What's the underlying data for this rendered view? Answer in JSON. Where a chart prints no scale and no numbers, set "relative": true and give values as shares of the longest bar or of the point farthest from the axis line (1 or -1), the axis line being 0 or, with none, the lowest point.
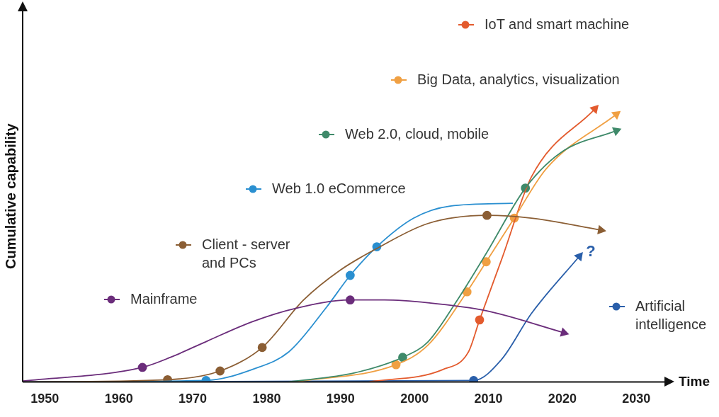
{
  "chart_data": {
    "type": "line",
    "relative": true,
    "xlabel": "Time",
    "ylabel": "Cumulative capability",
    "xlim": [
      1947,
      2034
    ],
    "xticks": [
      1950,
      1960,
      1970,
      1980,
      1990,
      2000,
      2010,
      2020,
      2030
    ],
    "grid": false,
    "legend": "top right",
    "marker": "none",
    "annotations": [
      "?"
    ],
    "series": [
      {
        "name": "Mainframe",
        "color": "#6b2d7b",
        "x": [
          1947.1,
          1963.2,
          1967,
          1972,
          1978,
          1984,
          1991.3,
          1995.9,
          2001.8,
          2009.8,
          2020.2
        ],
        "values": [
          0.003,
          0.053,
          0.09,
          0.15,
          0.22,
          0.27,
          0.3,
          0.3,
          0.29,
          0.26,
          0.18
        ]
      },
      {
        "name": "Client - server and PCs",
        "color": "#8b5e34",
        "x": [
          1947,
          1966.6,
          1973.7,
          1979.4,
          1985,
          1990,
          1995,
          2001.8,
          2009.8,
          2015.8,
          2025.2
        ],
        "values": [
          0,
          0.008,
          0.04,
          0.126,
          0.3,
          0.41,
          0.49,
          0.58,
          0.61,
          0.6,
          0.556
        ]
      },
      {
        "name": "Web 1.0 eCommerce",
        "color": "#2a8fd0",
        "x": [
          1947,
          1971.8,
          1978,
          1983,
          1988,
          1991.3,
          1994.9,
          1999.9,
          2004.8,
          2013.3
        ],
        "values": [
          0,
          0.005,
          0.045,
          0.11,
          0.27,
          0.39,
          0.495,
          0.6,
          0.644,
          0.654
        ]
      },
      {
        "name": "Web 2.0, cloud, mobile",
        "color": "#3f8a6a",
        "x": [
          1983,
          1991.9,
          1998.4,
          2001.8,
          2005.8,
          2009.8,
          2015,
          2019.8,
          2027.3
        ],
        "values": [
          0,
          0.033,
          0.09,
          0.146,
          0.3,
          0.475,
          0.71,
          0.84,
          0.92
        ]
      },
      {
        "name": "Big Data, analytics, visualization",
        "color": "#f0a043",
        "x": [
          1984,
          1997.5,
          2001.8,
          2007.1,
          2009.7,
          2013.5,
          2017.8,
          2027.3
        ],
        "values": [
          0,
          0.063,
          0.134,
          0.33,
          0.44,
          0.6,
          0.78,
          0.98
        ]
      },
      {
        "name": "IoT and smart machine",
        "color": "#e35b2e",
        "x": [
          1993.9,
          2003.8,
          2007.3,
          2008.8,
          2011.8,
          2015.8,
          2024.4
        ],
        "values": [
          0,
          0.045,
          0.11,
          0.227,
          0.45,
          0.75,
          1.0
        ]
      },
      {
        "name": "Artificial intelligence",
        "color": "#2a5faa",
        "x": [
          1947,
          2008,
          2011.8,
          2015.8,
          2022.3
        ],
        "values": [
          0,
          0.005,
          0.083,
          0.25,
          0.46
        ]
      },
      {
        "type": "scatter",
        "marker": "circle",
        "color": "#6b2d7b",
        "x": [
          1963.2,
          1991.3
        ],
        "values": [
          0.053,
          0.3
        ]
      },
      {
        "type": "scatter",
        "marker": "circle",
        "color": "#8b5e34",
        "x": [
          1966.6,
          1973.7,
          1979.4,
          2009.8
        ],
        "values": [
          0.008,
          0.04,
          0.126,
          0.61
        ]
      },
      {
        "type": "scatter",
        "marker": "circle",
        "color": "#2a8fd0",
        "x": [
          1971.8,
          1991.3,
          1994.9
        ],
        "values": [
          0.005,
          0.39,
          0.495
        ]
      },
      {
        "type": "scatter",
        "marker": "circle",
        "color": "#3f8a6a",
        "x": [
          1998.4,
          2015
        ],
        "values": [
          0.09,
          0.71
        ]
      },
      {
        "type": "scatter",
        "marker": "circle",
        "color": "#f0a043",
        "x": [
          1997.5,
          2007.1,
          2009.7,
          2013.5
        ],
        "values": [
          0.063,
          0.33,
          0.44,
          0.6
        ]
      },
      {
        "type": "scatter",
        "marker": "circle",
        "color": "#e35b2e",
        "x": [
          2008.8
        ],
        "values": [
          0.227
        ]
      },
      {
        "type": "scatter",
        "marker": "circle",
        "color": "#2a5faa",
        "x": [
          2008
        ],
        "values": [
          0.005
        ]
      }
    ]
  }
}
